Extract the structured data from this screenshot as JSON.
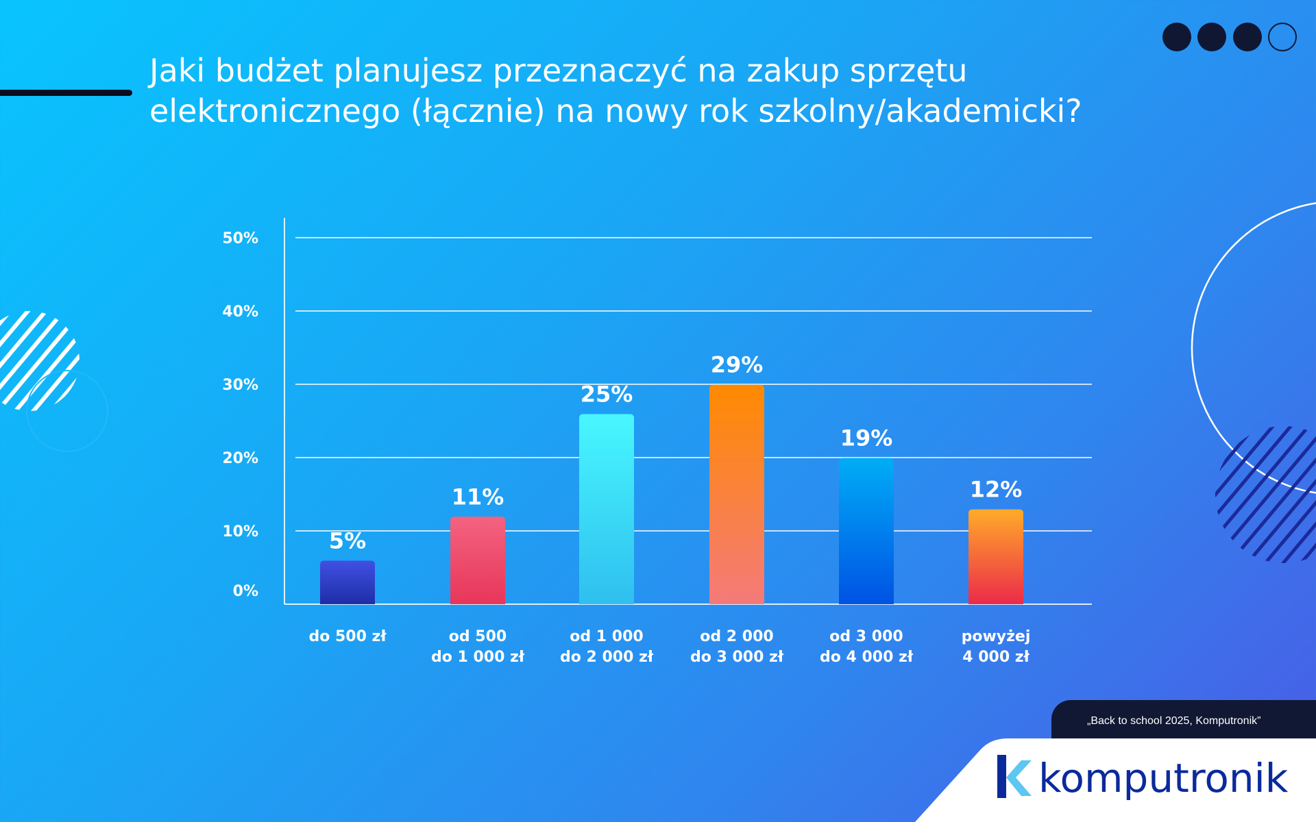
{
  "title_line1": "Jaki budżet planujesz przeznaczyć na zakup sprzętu",
  "title_line2": "elektronicznego (łącznie) na nowy rok szkolny/akademicki?",
  "source": "„Back to school 2025, Komputronik”",
  "logo": "komputronik",
  "chart_data": {
    "type": "bar",
    "title": "Jaki budżet planujesz przeznaczyć na zakup sprzętu elektronicznego (łącznie) na nowy rok szkolny/akademicki?",
    "categories": [
      [
        "do 500 zł"
      ],
      [
        "od 500",
        "do 1 000 zł"
      ],
      [
        "od 1 000",
        "do 2 000 zł"
      ],
      [
        "od 2 000",
        "do 3 000 zł"
      ],
      [
        "od 3 000",
        "do 4 000 zł"
      ],
      [
        "powyżej",
        "4 000 zł"
      ]
    ],
    "values": [
      5,
      11,
      25,
      29,
      19,
      12
    ],
    "data_labels": [
      "5%",
      "11%",
      "25%",
      "29%",
      "19%",
      "12%"
    ],
    "yticks": [
      0,
      10,
      20,
      30,
      40,
      50
    ],
    "ytick_labels": [
      "0%",
      "10%",
      "20%",
      "30%",
      "40%",
      "50%"
    ],
    "ylim": [
      0,
      50
    ],
    "grid": true,
    "colors": [
      [
        "#4050e4",
        "#1e2ea6"
      ],
      [
        "#f3637f",
        "#e8365a"
      ],
      [
        "#48f7ff",
        "#2fbfee"
      ],
      [
        "#ff8a00",
        "#f47a7a"
      ],
      [
        "#00adf6",
        "#0052e4"
      ],
      [
        "#ffab28",
        "#ec2a4a"
      ]
    ]
  }
}
